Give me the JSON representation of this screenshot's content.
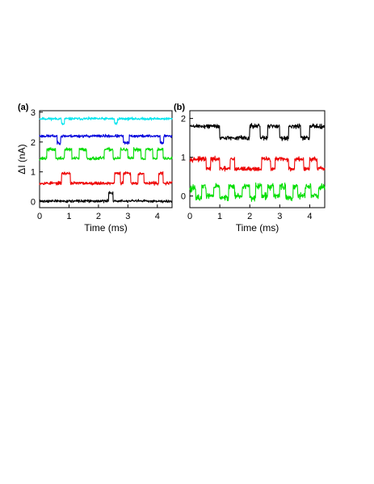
{
  "chart_data": [
    {
      "type": "line",
      "panel_label": "(a)",
      "xlabel": "Time (ms)",
      "ylabel": "ΔI (nA)",
      "xlim": [
        0,
        4.5
      ],
      "ylim": [
        -0.2,
        3.05
      ],
      "xticks": [
        0,
        1,
        2,
        3,
        4
      ],
      "yticks": [
        0,
        1,
        2,
        3
      ],
      "series": [
        {
          "color": "#00e5ee",
          "noise": 0.028,
          "seed": 11,
          "segments": [
            [
              0,
              2.78
            ],
            [
              0.75,
              2.6
            ],
            [
              0.85,
              2.78
            ],
            [
              2.55,
              2.62
            ],
            [
              2.65,
              2.78
            ],
            [
              4.5,
              2.78
            ]
          ]
        },
        {
          "color": "#0000dd",
          "noise": 0.03,
          "seed": 23,
          "segments": [
            [
              0,
              2.2
            ],
            [
              0.6,
              1.97
            ],
            [
              0.72,
              2.2
            ],
            [
              2.85,
              1.97
            ],
            [
              3.05,
              2.2
            ],
            [
              4.1,
              1.97
            ],
            [
              4.22,
              2.2
            ],
            [
              4.5,
              2.2
            ]
          ]
        },
        {
          "color": "#00dd00",
          "noise": 0.035,
          "seed": 37,
          "segments": [
            [
              0,
              1.45
            ],
            [
              0.25,
              1.75
            ],
            [
              0.55,
              1.45
            ],
            [
              0.85,
              1.75
            ],
            [
              1.1,
              1.45
            ],
            [
              1.35,
              1.75
            ],
            [
              1.6,
              1.45
            ],
            [
              2.2,
              1.75
            ],
            [
              2.5,
              1.45
            ],
            [
              2.75,
              1.75
            ],
            [
              3.0,
              1.45
            ],
            [
              3.2,
              1.75
            ],
            [
              3.45,
              1.45
            ],
            [
              3.6,
              1.75
            ],
            [
              3.85,
              1.45
            ],
            [
              4.0,
              1.75
            ],
            [
              4.2,
              1.45
            ],
            [
              4.5,
              1.45
            ]
          ]
        },
        {
          "color": "#ee0000",
          "noise": 0.032,
          "seed": 53,
          "segments": [
            [
              0,
              0.62
            ],
            [
              0.75,
              0.95
            ],
            [
              1.05,
              0.62
            ],
            [
              2.55,
              0.95
            ],
            [
              2.75,
              0.62
            ],
            [
              2.85,
              0.95
            ],
            [
              3.1,
              0.62
            ],
            [
              3.35,
              0.95
            ],
            [
              3.55,
              0.62
            ],
            [
              4.05,
              0.95
            ],
            [
              4.2,
              0.62
            ],
            [
              4.5,
              0.62
            ]
          ]
        },
        {
          "color": "#000000",
          "noise": 0.028,
          "seed": 71,
          "segments": [
            [
              0,
              0.02
            ],
            [
              2.35,
              0.3
            ],
            [
              2.5,
              0.02
            ],
            [
              4.5,
              0.02
            ]
          ]
        }
      ]
    },
    {
      "type": "line",
      "panel_label": "(b)",
      "xlabel": "Time (ms)",
      "ylabel": "",
      "xlim": [
        0,
        4.5
      ],
      "ylim": [
        -0.3,
        2.2
      ],
      "xticks": [
        0,
        1,
        2,
        3,
        4
      ],
      "yticks": [
        0,
        1,
        2
      ],
      "series": [
        {
          "color": "#000000",
          "noise": 0.035,
          "seed": 89,
          "segments": [
            [
              0,
              1.8
            ],
            [
              1.0,
              1.5
            ],
            [
              2.0,
              1.8
            ],
            [
              2.35,
              1.5
            ],
            [
              2.6,
              1.8
            ],
            [
              3.0,
              1.5
            ],
            [
              3.3,
              1.8
            ],
            [
              3.7,
              1.5
            ],
            [
              4.0,
              1.8
            ],
            [
              4.5,
              1.8
            ]
          ]
        },
        {
          "color": "#ee0000",
          "noise": 0.035,
          "seed": 97,
          "segments": [
            [
              0,
              0.95
            ],
            [
              0.55,
              0.7
            ],
            [
              0.7,
              0.95
            ],
            [
              1.0,
              0.7
            ],
            [
              1.35,
              0.95
            ],
            [
              1.5,
              0.7
            ],
            [
              2.4,
              0.95
            ],
            [
              2.7,
              0.7
            ],
            [
              2.85,
              0.95
            ],
            [
              3.3,
              0.7
            ],
            [
              3.5,
              0.95
            ],
            [
              3.8,
              0.7
            ],
            [
              4.0,
              0.95
            ],
            [
              4.25,
              0.7
            ],
            [
              4.5,
              0.7
            ]
          ]
        },
        {
          "color": "#00dd00",
          "noise": 0.05,
          "seed": 113,
          "segments": [
            [
              0,
              0.2
            ],
            [
              0.2,
              -0.05
            ],
            [
              0.4,
              0.25
            ],
            [
              0.55,
              0.0
            ],
            [
              0.8,
              0.25
            ],
            [
              1.0,
              -0.05
            ],
            [
              1.3,
              0.25
            ],
            [
              1.5,
              0.0
            ],
            [
              1.75,
              0.25
            ],
            [
              2.0,
              -0.05
            ],
            [
              2.2,
              0.25
            ],
            [
              2.4,
              0.0
            ],
            [
              2.6,
              0.25
            ],
            [
              2.8,
              0.0
            ],
            [
              3.0,
              0.25
            ],
            [
              3.2,
              -0.05
            ],
            [
              3.45,
              0.25
            ],
            [
              3.6,
              0.0
            ],
            [
              3.85,
              0.25
            ],
            [
              4.05,
              0.0
            ],
            [
              4.3,
              0.25
            ],
            [
              4.5,
              0.1
            ]
          ]
        }
      ]
    }
  ]
}
